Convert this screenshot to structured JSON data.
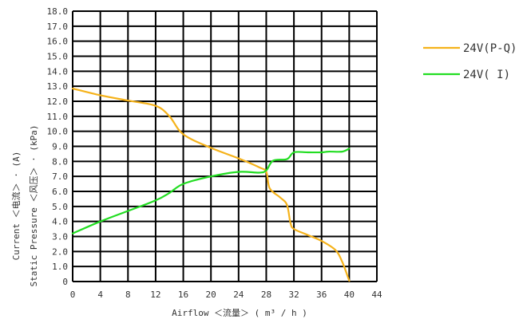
{
  "chart_data": {
    "type": "line",
    "xlabel": "Airflow ＜流量＞ ( m³ / h )",
    "ylabel_left": "Static  Pressure  ＜风压＞ · (kPa)",
    "ylabel_right": "Current  ＜电流＞ · (A)",
    "xlim": [
      0,
      44
    ],
    "ylim": [
      0,
      18
    ],
    "x_ticks": [
      "0",
      "4",
      "8",
      "12",
      "16",
      "20",
      "24",
      "28",
      "32",
      "36",
      "40",
      "44"
    ],
    "y_ticks": [
      "0",
      "1.0",
      "2.0",
      "3.0",
      "4.0",
      "5.0",
      "6.0",
      "7.0",
      "8.0",
      "9.0",
      "10.0",
      "11.0",
      "12.0",
      "13.0",
      "14.0",
      "15.0",
      "16.0",
      "17.0",
      "18.0"
    ],
    "grid": true,
    "legend": "right",
    "series": [
      {
        "name": "24V(P-Q)",
        "color": "#f5b21a",
        "points": [
          [
            0,
            12.85
          ],
          [
            4,
            12.4
          ],
          [
            8,
            12.05
          ],
          [
            12,
            11.7
          ],
          [
            14,
            11.0
          ],
          [
            16,
            9.8
          ],
          [
            20,
            8.9
          ],
          [
            24,
            8.2
          ],
          [
            27,
            7.6
          ],
          [
            28,
            7.3
          ],
          [
            28.5,
            6.2
          ],
          [
            30,
            5.6
          ],
          [
            31,
            5.1
          ],
          [
            31.5,
            3.9
          ],
          [
            32,
            3.5
          ],
          [
            34,
            3.1
          ],
          [
            36,
            2.7
          ],
          [
            38,
            2.1
          ],
          [
            39,
            1.3
          ],
          [
            40,
            0.05
          ]
        ]
      },
      {
        "name": "24V( I)",
        "color": "#22dd22",
        "points": [
          [
            0,
            3.2
          ],
          [
            4,
            4.0
          ],
          [
            8,
            4.7
          ],
          [
            12,
            5.4
          ],
          [
            14,
            5.9
          ],
          [
            16,
            6.5
          ],
          [
            20,
            7.0
          ],
          [
            24,
            7.3
          ],
          [
            27,
            7.25
          ],
          [
            28,
            7.4
          ],
          [
            29,
            8.05
          ],
          [
            31,
            8.15
          ],
          [
            32,
            8.6
          ],
          [
            34,
            8.6
          ],
          [
            36,
            8.6
          ],
          [
            37,
            8.65
          ],
          [
            39,
            8.65
          ],
          [
            40,
            8.85
          ]
        ]
      }
    ]
  }
}
